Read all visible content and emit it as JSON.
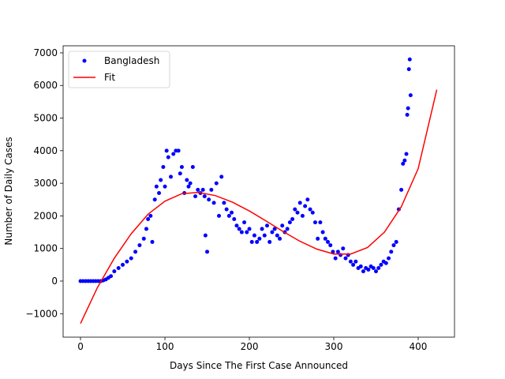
{
  "chart_data": {
    "type": "scatter",
    "xlabel": "Days Since The First Case Announced",
    "ylabel": "Number of Daily Cases",
    "xlim": [
      -20.6,
      443
    ],
    "ylim": [
      -1720,
      7217
    ],
    "xticks": [
      0,
      100,
      200,
      300,
      400
    ],
    "yticks": [
      {
        "value": -1000,
        "label": "−1000"
      },
      0,
      1000,
      2000,
      3000,
      4000,
      5000,
      6000,
      7000
    ],
    "legend": "upper left",
    "series": [
      {
        "name": "Bangladesh",
        "kind": "points",
        "color": "#0000ff",
        "x": [
          0,
          3,
          6,
          9,
          12,
          15,
          18,
          21,
          24,
          27,
          30,
          33,
          36,
          40,
          45,
          50,
          55,
          60,
          65,
          70,
          75,
          78,
          80,
          83,
          85,
          88,
          90,
          93,
          95,
          98,
          100,
          102,
          104,
          107,
          110,
          113,
          116,
          118,
          120,
          123,
          126,
          128,
          130,
          133,
          136,
          139,
          142,
          145,
          147,
          148,
          150,
          152,
          155,
          158,
          161,
          164,
          167,
          170,
          173,
          176,
          179,
          182,
          185,
          188,
          191,
          194,
          197,
          200,
          203,
          206,
          209,
          212,
          215,
          218,
          221,
          224,
          227,
          230,
          233,
          236,
          239,
          242,
          245,
          248,
          251,
          254,
          257,
          260,
          263,
          266,
          269,
          272,
          275,
          278,
          281,
          284,
          287,
          290,
          293,
          296,
          299,
          302,
          305,
          308,
          311,
          314,
          317,
          320,
          323,
          326,
          329,
          332,
          335,
          338,
          341,
          344,
          347,
          350,
          353,
          356,
          359,
          362,
          365,
          368,
          371,
          374,
          377,
          380,
          382,
          384,
          386,
          387,
          388,
          389,
          390,
          391
        ],
        "values": [
          0,
          0,
          0,
          0,
          0,
          0,
          0,
          0,
          0,
          20,
          50,
          100,
          150,
          300,
          400,
          500,
          600,
          700,
          900,
          1100,
          1300,
          1600,
          1900,
          2000,
          1200,
          2500,
          2900,
          2700,
          3100,
          3500,
          2900,
          4000,
          3800,
          3200,
          3900,
          4000,
          4000,
          3300,
          3500,
          2700,
          3100,
          2900,
          3000,
          3500,
          2600,
          2800,
          2700,
          2800,
          2600,
          1400,
          900,
          2500,
          2800,
          2400,
          3000,
          2000,
          3200,
          2400,
          2200,
          2000,
          2100,
          1900,
          1700,
          1600,
          1500,
          1800,
          1500,
          1600,
          1200,
          1400,
          1200,
          1300,
          1600,
          1400,
          1700,
          1200,
          1500,
          1600,
          1400,
          1300,
          1700,
          1500,
          1600,
          1800,
          1900,
          2200,
          2100,
          2400,
          2000,
          2300,
          2500,
          2200,
          2100,
          1800,
          1300,
          1800,
          1500,
          1300,
          1200,
          1100,
          900,
          700,
          900,
          800,
          1000,
          700,
          800,
          600,
          500,
          600,
          400,
          450,
          300,
          400,
          350,
          450,
          400,
          300,
          400,
          500,
          600,
          550,
          700,
          900,
          1100,
          1200,
          2200,
          2800,
          3600,
          3700,
          3900,
          5100,
          5300,
          6500,
          6800,
          5700
        ]
      },
      {
        "name": "Fit",
        "kind": "line",
        "color": "#ff0000",
        "x": [
          0,
          20,
          40,
          60,
          80,
          100,
          120,
          140,
          160,
          180,
          200,
          220,
          240,
          260,
          280,
          300,
          320,
          340,
          360,
          380,
          400,
          422
        ],
        "values": [
          -1300,
          -200,
          700,
          1450,
          2050,
          2450,
          2680,
          2720,
          2620,
          2420,
          2150,
          1840,
          1520,
          1220,
          980,
          830,
          830,
          1030,
          1500,
          2280,
          3450,
          5870
        ]
      }
    ]
  }
}
